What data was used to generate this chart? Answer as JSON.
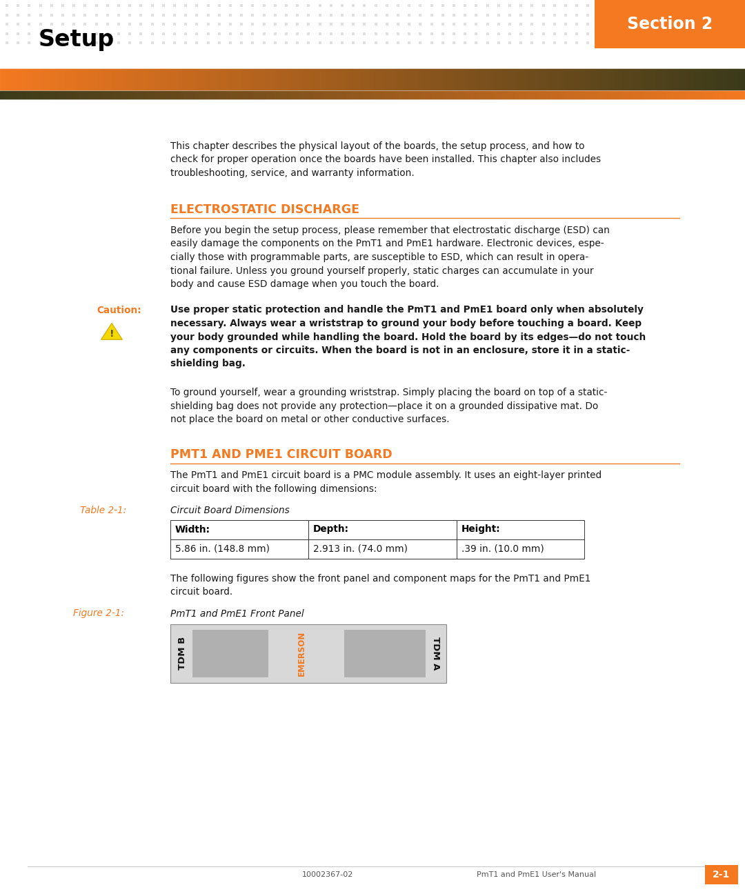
{
  "page_bg": "#ffffff",
  "dot_pattern_color": "#e0e0e0",
  "section_badge_color": "#f47920",
  "section_badge_text": "Section 2",
  "page_title": "Setup",
  "intro_text": "This chapter describes the physical layout of the boards, the setup process, and how to\ncheck for proper operation once the boards have been installed. This chapter also includes\ntroubleshooting, service, and warranty information.",
  "section1_title": "ELECTROSTATIC DISCHARGE",
  "section1_color": "#f47920",
  "section1_body_lines": [
    "Before you begin the setup process, please remember that electrostatic discharge (ESD) can",
    "easily damage the components on the PmT1 and PmE1 hardware. Electronic devices, espe-",
    "cially those with programmable parts, are susceptible to ESD, which can result in opera-",
    "tional failure. Unless you ground yourself properly, static charges can accumulate in your",
    "body and cause ESD damage when you touch the board."
  ],
  "caution_label": "Caution:",
  "caution_label_color": "#f47920",
  "caution_text_lines": [
    "Use proper static protection and handle the PmT1 and PmE1 board only when absolutely",
    "necessary. Always wear a wriststrap to ground your body before touching a board. Keep",
    "your body grounded while handling the board. Hold the board by its edges—do not touch",
    "any components or circuits. When the board is not in an enclosure, store it in a static-",
    "shielding bag."
  ],
  "caution_icon_color": "#f5d800",
  "ground_text_lines": [
    "To ground yourself, wear a grounding wriststrap. Simply placing the board on top of a static-",
    "shielding bag does not provide any protection—place it on a grounded dissipative mat. Do",
    "not place the board on metal or other conductive surfaces."
  ],
  "section2_title": "PMT1 AND PME1 CIRCUIT BOARD",
  "section2_color": "#f47920",
  "section2_body_lines": [
    "The PmT1 and PmE1 circuit board is a PMC module assembly. It uses an eight-layer printed",
    "circuit board with the following dimensions:"
  ],
  "table_label": "Table 2-1:",
  "table_label_color": "#f47920",
  "table_caption": "Circuit Board Dimensions",
  "table_headers": [
    "Width:",
    "Depth:",
    "Height:"
  ],
  "table_values": [
    "5.86 in. (148.8 mm)",
    "2.913 in. (74.0 mm)",
    ".39 in. (10.0 mm)"
  ],
  "fig_text_lines": [
    "The following figures show the front panel and component maps for the PmT1 and PmE1",
    "circuit board."
  ],
  "figure_label": "Figure 2-1:",
  "figure_label_color": "#f47920",
  "figure_caption": "PmT1 and PmE1 Front Panel",
  "figure_tdmb": "TDM B",
  "figure_tdma": "TDM A",
  "figure_emerson": "EMERSON",
  "figure_emerson_color": "#f47920",
  "footer_left": "10002367-02",
  "footer_center": "PmT1 and PmE1 User's Manual",
  "footer_badge_color": "#f47920",
  "footer_badge_text": "2-1"
}
